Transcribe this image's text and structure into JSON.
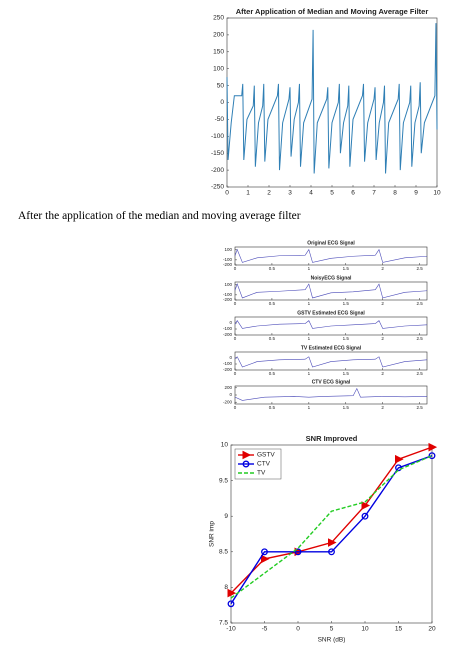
{
  "caption": "After the application of the median and moving average filter",
  "chart_data": [
    {
      "type": "line",
      "title": "After Application of Median and Moving Average Filter",
      "color": "#2f7fb5",
      "x": [
        0,
        0.05,
        0.2,
        0.35,
        0.7,
        0.75,
        0.8,
        0.95,
        1.25,
        1.3,
        1.35,
        1.5,
        1.7,
        1.75,
        1.8,
        1.95,
        2.4,
        2.45,
        2.5,
        2.65,
        2.95,
        3.0,
        3.05,
        3.2,
        3.4,
        3.45,
        3.5,
        3.65,
        4.05,
        4.1,
        4.15,
        4.3,
        4.75,
        4.8,
        4.85,
        5.0,
        5.3,
        5.35,
        5.4,
        5.55,
        5.75,
        5.8,
        5.85,
        6.0,
        6.45,
        6.5,
        6.55,
        6.7,
        7.0,
        7.05,
        7.1,
        7.25,
        7.45,
        7.5,
        7.55,
        7.7,
        8.15,
        8.2,
        8.25,
        8.4,
        8.7,
        8.75,
        8.8,
        8.95,
        9.15,
        9.2,
        9.25,
        9.4,
        9.9,
        9.95,
        10.0
      ],
      "values": [
        75,
        -170,
        -60,
        20,
        20,
        55,
        -170,
        -50,
        -10,
        50,
        -190,
        -60,
        -10,
        55,
        -175,
        -50,
        20,
        55,
        -200,
        -60,
        10,
        45,
        -160,
        -50,
        0,
        55,
        -190,
        -60,
        10,
        215,
        -210,
        -60,
        10,
        45,
        -195,
        -60,
        0,
        55,
        -150,
        -60,
        -10,
        50,
        -190,
        -50,
        20,
        55,
        -175,
        -60,
        10,
        45,
        -170,
        -60,
        0,
        50,
        -210,
        -60,
        10,
        55,
        -200,
        -60,
        0,
        50,
        -190,
        -60,
        -10,
        60,
        -150,
        -60,
        20,
        235,
        -80
      ],
      "xlim": [
        0,
        10
      ],
      "xticks": [
        0,
        1,
        2,
        3,
        4,
        5,
        6,
        7,
        8,
        9,
        10
      ],
      "ylim": [
        -250,
        250
      ],
      "yticks": [
        -250,
        -200,
        -150,
        -100,
        -50,
        0,
        50,
        100,
        150,
        200,
        250
      ]
    },
    {
      "type": "line",
      "title": "Original ECG Signal",
      "color": "#4a4ab8",
      "x": [
        0,
        0.03,
        0.1,
        0.3,
        0.6,
        0.95,
        1.0,
        1.05,
        1.3,
        1.6,
        1.9,
        1.95,
        2.0,
        2.3,
        2.6
      ],
      "values": [
        -20,
        100,
        -150,
        -60,
        -20,
        -10,
        100,
        -150,
        -70,
        -30,
        -10,
        100,
        -150,
        -60,
        -30
      ],
      "xlim": [
        0,
        2.6
      ],
      "xticks": [
        0,
        0.5,
        1,
        1.5,
        2,
        2.5
      ],
      "ylim": [
        -200,
        150
      ],
      "yticks": [
        -200,
        -100,
        100
      ]
    },
    {
      "type": "line",
      "title": "NoisyECG Signal",
      "color": "#4a4ab8",
      "x": [
        0,
        0.03,
        0.1,
        0.3,
        0.6,
        0.95,
        1.0,
        1.05,
        1.3,
        1.6,
        1.9,
        1.95,
        2.0,
        2.3,
        2.6
      ],
      "values": [
        -10,
        110,
        -160,
        -50,
        -30,
        0,
        110,
        -160,
        -60,
        -40,
        0,
        110,
        -160,
        -50,
        -20
      ],
      "xlim": [
        0,
        2.6
      ],
      "xticks": [
        0,
        0.5,
        1,
        1.5,
        2,
        2.5
      ],
      "ylim": [
        -200,
        150
      ],
      "yticks": [
        -200,
        -100,
        100
      ]
    },
    {
      "type": "line",
      "title": "GSTV Estimated ECG Signal",
      "color": "#4a4ab8",
      "x": [
        0,
        0.03,
        0.1,
        0.3,
        0.6,
        0.95,
        1.0,
        1.05,
        1.3,
        1.6,
        1.9,
        1.95,
        2.0,
        2.3,
        2.6
      ],
      "values": [
        -20,
        40,
        -90,
        -50,
        -20,
        -10,
        40,
        -90,
        -50,
        -30,
        -10,
        40,
        -90,
        -50,
        -30
      ],
      "xlim": [
        0,
        2.6
      ],
      "xticks": [
        0,
        0.5,
        1,
        1.5,
        2,
        2.5
      ],
      "ylim": [
        -200,
        100
      ],
      "yticks": [
        -200,
        -100,
        0
      ]
    },
    {
      "type": "line",
      "title": "TV Estimated ECG Signal",
      "color": "#4a4ab8",
      "x": [
        0,
        0.03,
        0.1,
        0.3,
        0.6,
        0.95,
        1.0,
        1.05,
        1.3,
        1.6,
        1.9,
        1.95,
        2.0,
        2.3,
        2.6
      ],
      "values": [
        -10,
        20,
        -150,
        -60,
        -30,
        -20,
        20,
        -150,
        -60,
        -30,
        -20,
        20,
        -150,
        -60,
        -30
      ],
      "xlim": [
        0,
        2.6
      ],
      "xticks": [
        0,
        0.5,
        1,
        1.5,
        2,
        2.5
      ],
      "ylim": [
        -200,
        100
      ],
      "yticks": [
        -200,
        -100,
        0
      ]
    },
    {
      "type": "line",
      "title": "CTV ECG Signal",
      "color": "#4a4ab8",
      "x": [
        0,
        0.1,
        0.4,
        0.8,
        1.0,
        1.2,
        1.6,
        1.65,
        1.7,
        2.0,
        2.3,
        2.6
      ],
      "values": [
        -60,
        -150,
        -60,
        -40,
        -60,
        -40,
        -20,
        180,
        -60,
        -40,
        -50,
        -40
      ],
      "xlim": [
        0,
        2.6
      ],
      "xticks": [
        0,
        0.5,
        1,
        1.5,
        2,
        2.5
      ],
      "ylim": [
        -250,
        250
      ],
      "yticks": [
        -200,
        0,
        200
      ]
    },
    {
      "type": "line",
      "title": "SNR Improved",
      "x_label": "SNR (dB)",
      "y_label": "SNR imp",
      "legend": "upper left",
      "x": [
        -10,
        -5,
        0,
        5,
        10,
        15,
        20
      ],
      "series": [
        {
          "name": "GSTV",
          "color": "#e00000",
          "marker": "triangle",
          "line_style": "solid",
          "values": [
            7.92,
            8.4,
            8.5,
            8.63,
            9.15,
            9.8,
            9.97
          ]
        },
        {
          "name": "CTV",
          "color": "#0000e0",
          "marker": "circle",
          "line_style": "solid",
          "values": [
            7.77,
            8.5,
            8.5,
            8.5,
            9.0,
            9.68,
            9.85
          ]
        },
        {
          "name": "TV",
          "color": "#22cc22",
          "line_style": "dashed",
          "values": [
            7.85,
            8.2,
            8.55,
            9.07,
            9.2,
            9.65,
            9.85
          ]
        }
      ],
      "xlim": [
        -10,
        20
      ],
      "xticks": [
        -10,
        -5,
        0,
        5,
        10,
        15,
        20
      ],
      "ylim": [
        7.5,
        10
      ],
      "yticks": [
        7.5,
        8,
        8.5,
        9,
        9.5,
        10
      ]
    }
  ]
}
